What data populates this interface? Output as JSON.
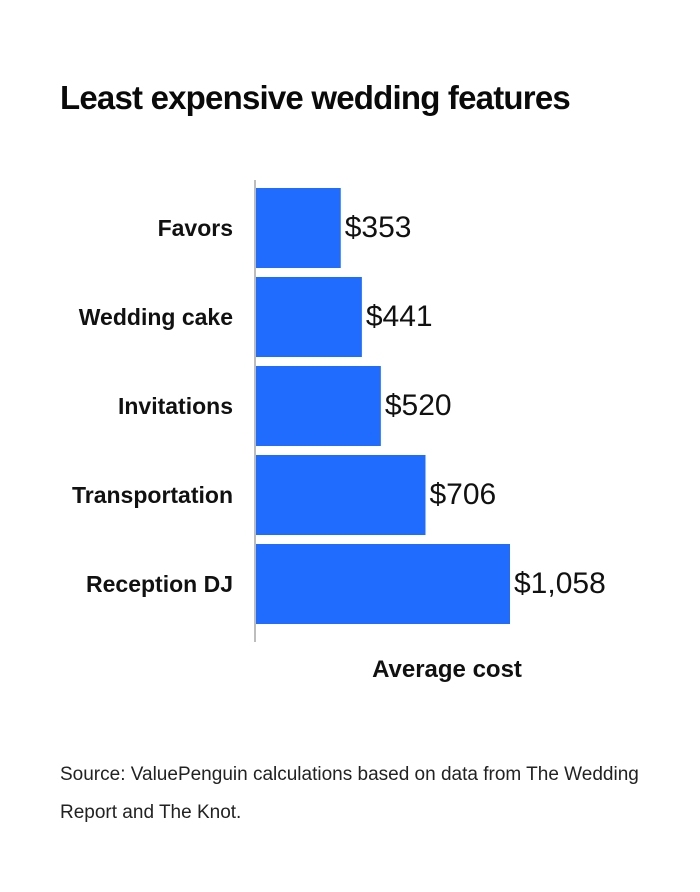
{
  "header": {
    "title": "Least expensive wedding features"
  },
  "chart_data": {
    "type": "bar",
    "orientation": "horizontal",
    "title": "Least expensive wedding features",
    "categories": [
      "Favors",
      "Wedding cake",
      "Invitations",
      "Transportation",
      "Reception DJ"
    ],
    "values": [
      353,
      441,
      520,
      706,
      1058
    ],
    "value_labels": [
      "$353",
      "$441",
      "$520",
      "$706",
      "$1,058"
    ],
    "xlabel": "Average cost",
    "ylabel": "",
    "xlim": [
      0,
      1058
    ],
    "grid": false,
    "legend": "none",
    "bar_color": "#1f6cff"
  },
  "footer": {
    "source": "Source: ValuePenguin calculations based on data from The Wedding Report and The Knot."
  },
  "colors": {
    "bar": "#1f6cff",
    "axis": "#bdbdbd",
    "text": "#111111"
  }
}
